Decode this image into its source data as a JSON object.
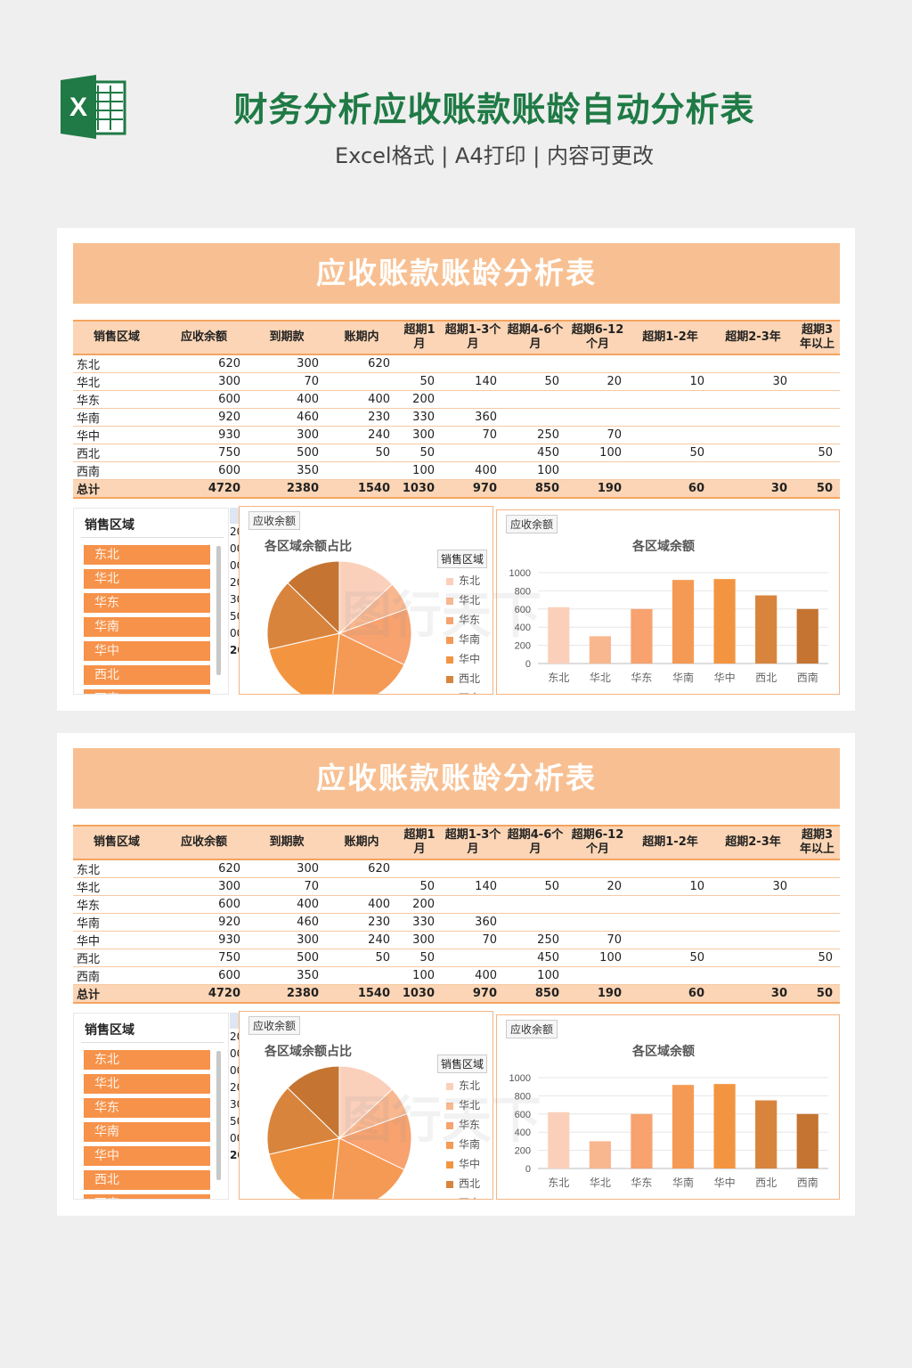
{
  "header": {
    "title": "财务分析应收账款账龄自动分析表",
    "subtitle": "Excel格式 | A4打印 | 内容可更改",
    "logo_letter": "X",
    "brand_color": "#1f7a45"
  },
  "banner_title": "应收账款账龄分析表",
  "table": {
    "headers": [
      "销售区域",
      "应收余额",
      "到期款",
      "账期内",
      "超期1月",
      "超期1-3个月",
      "超期4-6个月",
      "超期6-12个月",
      "超期1-2年",
      "超期2-3年",
      "超期3年以上"
    ],
    "rows": [
      [
        "东北",
        "620",
        "300",
        "620",
        "",
        "",
        "",
        "",
        "",
        "",
        ""
      ],
      [
        "华北",
        "300",
        "70",
        "",
        "50",
        "140",
        "50",
        "20",
        "10",
        "30",
        ""
      ],
      [
        "华东",
        "600",
        "400",
        "400",
        "200",
        "",
        "",
        "",
        "",
        "",
        ""
      ],
      [
        "华南",
        "920",
        "460",
        "230",
        "330",
        "360",
        "",
        "",
        "",
        "",
        ""
      ],
      [
        "华中",
        "930",
        "300",
        "240",
        "300",
        "70",
        "250",
        "70",
        "",
        "",
        ""
      ],
      [
        "西北",
        "750",
        "500",
        "50",
        "50",
        "",
        "450",
        "100",
        "50",
        "",
        "50"
      ],
      [
        "西南",
        "600",
        "350",
        "",
        "100",
        "400",
        "100",
        "",
        "",
        "",
        ""
      ]
    ],
    "total": [
      "总计",
      "4720",
      "2380",
      "1540",
      "1030",
      "970",
      "850",
      "190",
      "60",
      "30",
      "50"
    ]
  },
  "slicer": {
    "title": "销售区域",
    "items": [
      "东北",
      "华北",
      "华东",
      "华南",
      "华中",
      "西北",
      "西南"
    ]
  },
  "pivot_strip": [
    "20",
    "00",
    "00",
    "20",
    "30",
    "50",
    "00",
    "20"
  ],
  "pie": {
    "field_button": "应收余额",
    "title": "各区域余额占比",
    "legend_title": "销售区域"
  },
  "bar": {
    "field_button": "应收余额",
    "title": "各区域余额"
  },
  "watermark": "图行天下",
  "colors": [
    "#fbd0bb",
    "#f9b78f",
    "#f7a26f",
    "#f59a55",
    "#f39540",
    "#d9843d",
    "#c57531"
  ],
  "chart_data": [
    {
      "type": "pie",
      "title": "各区域余额占比",
      "categories": [
        "东北",
        "华北",
        "华东",
        "华南",
        "华中",
        "西北",
        "西南"
      ],
      "values": [
        620,
        300,
        600,
        920,
        930,
        750,
        600
      ]
    },
    {
      "type": "bar",
      "title": "各区域余额",
      "categories": [
        "东北",
        "华北",
        "华东",
        "华南",
        "华中",
        "西北",
        "西南"
      ],
      "values": [
        620,
        300,
        600,
        920,
        930,
        750,
        600
      ],
      "ylim": [
        0,
        1000
      ],
      "yticks": [
        0,
        200,
        400,
        600,
        800,
        1000
      ],
      "grid": true
    }
  ]
}
